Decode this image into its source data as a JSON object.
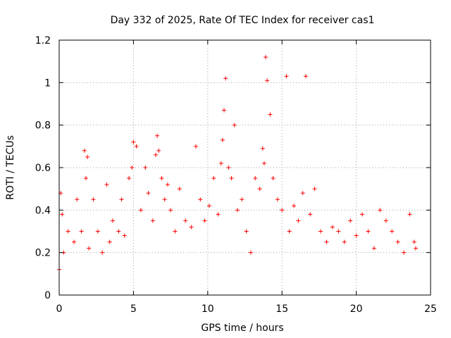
{
  "chart_data": {
    "type": "scatter",
    "title": "Day 332 of 2025, Rate Of TEC Index for receiver cas1",
    "xlabel": "GPS time / hours",
    "ylabel": "ROTI / TECUs",
    "xlim": [
      0,
      25
    ],
    "ylim": [
      0,
      1.2
    ],
    "x_ticks": [
      0,
      5,
      10,
      15,
      20,
      25
    ],
    "x_tick_labels": [
      "0",
      "5",
      "10",
      "15",
      "20",
      "25"
    ],
    "y_ticks": [
      0,
      0.2,
      0.4,
      0.6,
      0.8,
      1.0,
      1.2
    ],
    "y_tick_labels": [
      "0",
      "0.2",
      "0.4",
      "0.6",
      "0.8",
      "1",
      "1.2"
    ],
    "grid": true,
    "marker": "+",
    "color": "#ff0000",
    "series": [
      {
        "name": "cas1",
        "x": [
          0.0,
          0.1,
          0.2,
          0.3,
          0.6,
          1.0,
          1.2,
          1.5,
          1.7,
          1.8,
          1.9,
          2.0,
          2.3,
          2.6,
          2.9,
          3.2,
          3.4,
          3.6,
          4.0,
          4.2,
          4.4,
          4.7,
          4.9,
          5.0,
          5.2,
          5.5,
          5.8,
          6.0,
          6.3,
          6.5,
          6.6,
          6.7,
          6.9,
          7.1,
          7.3,
          7.5,
          7.8,
          8.1,
          8.5,
          8.9,
          9.2,
          9.5,
          9.8,
          10.1,
          10.4,
          10.7,
          10.9,
          11.0,
          11.1,
          11.2,
          11.4,
          11.6,
          11.8,
          12.0,
          12.3,
          12.6,
          12.9,
          13.2,
          13.5,
          13.7,
          13.8,
          13.9,
          14.0,
          14.2,
          14.4,
          14.7,
          15.0,
          15.3,
          15.5,
          15.8,
          16.1,
          16.4,
          16.6,
          16.9,
          17.2,
          17.6,
          18.0,
          18.4,
          18.8,
          19.2,
          19.6,
          20.0,
          20.4,
          20.8,
          21.2,
          21.6,
          22.0,
          22.4,
          22.8,
          23.2,
          23.6,
          23.9,
          24.0
        ],
        "y": [
          0.12,
          0.48,
          0.38,
          0.2,
          0.3,
          0.25,
          0.45,
          0.3,
          0.68,
          0.55,
          0.65,
          0.22,
          0.45,
          0.3,
          0.2,
          0.52,
          0.25,
          0.35,
          0.3,
          0.45,
          0.28,
          0.55,
          0.6,
          0.72,
          0.7,
          0.4,
          0.6,
          0.48,
          0.35,
          0.66,
          0.75,
          0.68,
          0.55,
          0.45,
          0.52,
          0.4,
          0.3,
          0.5,
          0.35,
          0.32,
          0.7,
          0.45,
          0.35,
          0.42,
          0.55,
          0.38,
          0.62,
          0.73,
          0.87,
          1.02,
          0.6,
          0.55,
          0.8,
          0.4,
          0.45,
          0.3,
          0.2,
          0.55,
          0.5,
          0.69,
          0.62,
          1.12,
          1.01,
          0.85,
          0.55,
          0.45,
          0.4,
          1.03,
          0.3,
          0.42,
          0.35,
          0.48,
          1.03,
          0.38,
          0.5,
          0.3,
          0.25,
          0.32,
          0.3,
          0.25,
          0.35,
          0.28,
          0.38,
          0.3,
          0.22,
          0.4,
          0.35,
          0.3,
          0.25,
          0.2,
          0.38,
          0.25,
          0.22
        ]
      }
    ]
  }
}
